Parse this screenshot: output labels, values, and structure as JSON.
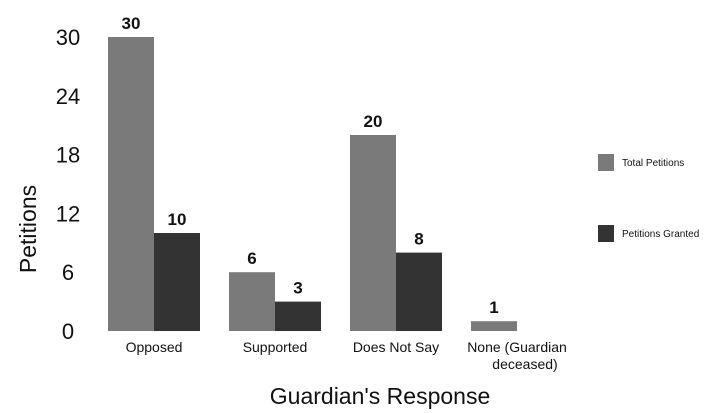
{
  "chart_data": {
    "type": "bar",
    "categories": [
      "Opposed",
      "Supported",
      "Does Not Say",
      "None (Guardian deceased)"
    ],
    "series": [
      {
        "name": "Total Petitions",
        "values": [
          30,
          6,
          20,
          1
        ],
        "color": "#7a7a7a"
      },
      {
        "name": "Petitions Granted",
        "values": [
          10,
          3,
          8,
          0
        ],
        "color": "#333333"
      }
    ],
    "data_labels": [
      [
        "30",
        "6",
        "20",
        "1"
      ],
      [
        "10",
        "3",
        "8",
        ""
      ]
    ],
    "xlabel": "Guardian's Response",
    "ylabel": "Petitions",
    "ylim": [
      0,
      30
    ],
    "yticks": [
      0,
      6,
      12,
      18,
      24,
      30
    ],
    "grid": false,
    "legend": "right"
  }
}
